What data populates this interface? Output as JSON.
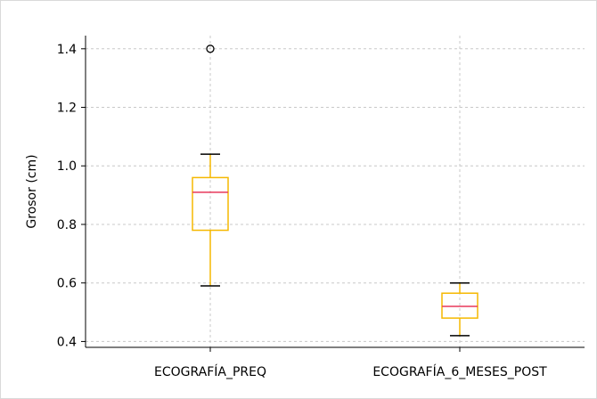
{
  "chart_data": {
    "type": "box",
    "title": "",
    "xlabel": "",
    "ylabel": "Grosor (cm)",
    "ylim": [
      0.38,
      1.445
    ],
    "yticks": [
      0.4,
      0.6,
      0.8,
      1.0,
      1.2,
      1.4
    ],
    "ytick_labels": [
      "0.4",
      "0.6",
      "0.8",
      "1.0",
      "1.2",
      "1.4"
    ],
    "grid": true,
    "categories": [
      "ECOGRAFÍA_PREQ",
      "ECOGRAFÍA_6_MESES_POST"
    ],
    "boxes": [
      {
        "category": "ECOGRAFÍA_PREQ",
        "whisker_low": 0.59,
        "q1": 0.78,
        "median": 0.91,
        "q3": 0.96,
        "whisker_high": 1.04,
        "outliers": [
          1.4
        ]
      },
      {
        "category": "ECOGRAFÍA_6_MESES_POST",
        "whisker_low": 0.42,
        "q1": 0.48,
        "median": 0.52,
        "q3": 0.565,
        "whisker_high": 0.6,
        "outliers": []
      }
    ],
    "colors": {
      "box": "#f5b800",
      "median": "#e8385a",
      "whisker_cap": "#000000",
      "grid": "#c8c8c8",
      "outlier": "#000000"
    }
  }
}
